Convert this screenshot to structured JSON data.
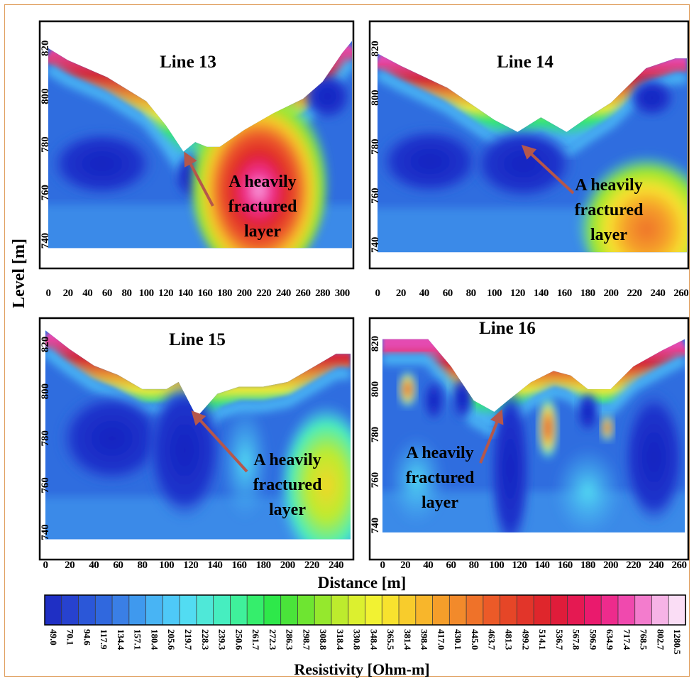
{
  "figure": {
    "ylabel": "Level [m]",
    "xlabel": "Distance [m]",
    "colorbar_label": "Resistivity [Ohm-m]"
  },
  "annotation": {
    "lines": [
      "A heavily",
      "fractured",
      "layer"
    ],
    "arrow_color": "#b5574b"
  },
  "colorbar": {
    "values": [
      "49.0",
      "70.1",
      "94.6",
      "117.9",
      "134.4",
      "157.1",
      "180.4",
      "205.6",
      "219.7",
      "228.3",
      "239.3",
      "250.6",
      "261.7",
      "272.3",
      "286.3",
      "298.7",
      "308.8",
      "318.4",
      "330.8",
      "348.4",
      "365.5",
      "381.4",
      "398.4",
      "417.0",
      "430.1",
      "445.0",
      "463.7",
      "481.3",
      "499.2",
      "514.1",
      "536.7",
      "567.8",
      "596.9",
      "634.9",
      "717.4",
      "768.5",
      "802.7",
      "1280.5"
    ],
    "colors": [
      "#1f2fc4",
      "#2742cf",
      "#2b57d8",
      "#3068de",
      "#3a7fe6",
      "#3f99ee",
      "#48b4f4",
      "#4ec9f8",
      "#52dcf2",
      "#4fe8d8",
      "#46eec0",
      "#3ff09b",
      "#35ee6c",
      "#2ee84a",
      "#4ae43a",
      "#6ee531",
      "#95e82d",
      "#bdeb2d",
      "#dcf02f",
      "#f2f232",
      "#f8e22e",
      "#f8cc2c",
      "#f8b62b",
      "#f59e2a",
      "#f28a2b",
      "#ef7229",
      "#ec5a28",
      "#e64627",
      "#e2352a",
      "#df262c",
      "#e01c3a",
      "#e51952",
      "#ea1a6d",
      "#ee2b8c",
      "#f049ae",
      "#f37ccd",
      "#f6b3e6",
      "#faddf5"
    ]
  },
  "chart_data": [
    {
      "type": "heatmap",
      "title": "Line 13",
      "xlabel": "Distance [m]",
      "ylabel": "Level [m]",
      "x_ticks": [
        0,
        20,
        40,
        60,
        80,
        100,
        120,
        140,
        160,
        180,
        200,
        220,
        240,
        260,
        280,
        300
      ],
      "y_ticks": [
        740,
        760,
        780,
        800,
        820
      ],
      "xlim": [
        0,
        310
      ],
      "ylim": [
        735,
        830
      ],
      "surface": [
        [
          0,
          820
        ],
        [
          20,
          815
        ],
        [
          60,
          808
        ],
        [
          100,
          798
        ],
        [
          120,
          788
        ],
        [
          138,
          777
        ],
        [
          150,
          781
        ],
        [
          162,
          779
        ],
        [
          175,
          779
        ],
        [
          200,
          786
        ],
        [
          230,
          793
        ],
        [
          260,
          799
        ],
        [
          280,
          806
        ],
        [
          300,
          818
        ],
        [
          310,
          823
        ]
      ],
      "arrow_target": [
        140,
        776
      ]
    },
    {
      "type": "heatmap",
      "title": "Line 14",
      "xlabel": "Distance [m]",
      "ylabel": "Level [m]",
      "x_ticks": [
        0,
        20,
        40,
        60,
        80,
        100,
        120,
        140,
        160,
        180,
        200,
        220,
        240,
        260
      ],
      "y_ticks": [
        740,
        760,
        780,
        800,
        820
      ],
      "xlim": [
        0,
        265
      ],
      "ylim": [
        735,
        830
      ],
      "surface": [
        [
          0,
          818
        ],
        [
          20,
          813
        ],
        [
          60,
          804
        ],
        [
          100,
          791
        ],
        [
          120,
          786
        ],
        [
          140,
          792
        ],
        [
          162,
          786
        ],
        [
          180,
          792
        ],
        [
          200,
          798
        ],
        [
          230,
          812
        ],
        [
          255,
          816
        ],
        [
          265,
          816
        ]
      ],
      "arrow_target": [
        125,
        780
      ]
    },
    {
      "type": "heatmap",
      "title": "Line 15",
      "xlabel": "Distance [m]",
      "ylabel": "Level [m]",
      "x_ticks": [
        0,
        20,
        40,
        60,
        80,
        100,
        120,
        140,
        160,
        180,
        200,
        220,
        240
      ],
      "y_ticks": [
        740,
        760,
        780,
        800,
        820
      ],
      "xlim": [
        0,
        252
      ],
      "ylim": [
        735,
        830
      ],
      "surface": [
        [
          0,
          826
        ],
        [
          20,
          818
        ],
        [
          40,
          811
        ],
        [
          60,
          807
        ],
        [
          80,
          801
        ],
        [
          100,
          801
        ],
        [
          110,
          804
        ],
        [
          125,
          789
        ],
        [
          142,
          799
        ],
        [
          160,
          802
        ],
        [
          180,
          802
        ],
        [
          200,
          804
        ],
        [
          220,
          810
        ],
        [
          240,
          816
        ],
        [
          252,
          816
        ]
      ],
      "arrow_target": [
        122,
        791
      ]
    },
    {
      "type": "heatmap",
      "title": "Line 16",
      "xlabel": "Distance [m]",
      "ylabel": "Level [m]",
      "x_ticks": [
        0,
        20,
        40,
        60,
        80,
        100,
        120,
        140,
        160,
        180,
        200,
        220,
        240,
        260
      ],
      "y_ticks": [
        740,
        760,
        780,
        800,
        820
      ],
      "xlim": [
        0,
        265
      ],
      "ylim": [
        735,
        830
      ],
      "surface": [
        [
          0,
          822
        ],
        [
          40,
          822
        ],
        [
          60,
          810
        ],
        [
          80,
          795
        ],
        [
          98,
          790
        ],
        [
          110,
          795
        ],
        [
          130,
          803
        ],
        [
          150,
          808
        ],
        [
          165,
          806
        ],
        [
          180,
          800
        ],
        [
          200,
          800
        ],
        [
          220,
          810
        ],
        [
          245,
          817
        ],
        [
          265,
          822
        ]
      ],
      "arrow_target": [
        104,
        790
      ]
    }
  ]
}
